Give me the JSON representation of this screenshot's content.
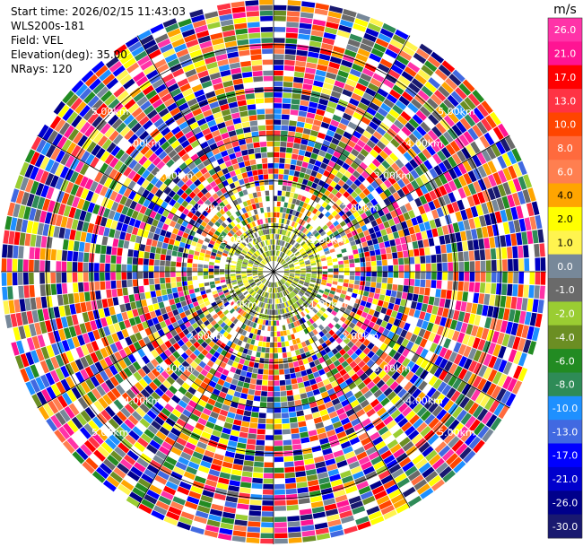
{
  "header": {
    "start_time": "Start time: 2026/02/15 11:43:03",
    "instrument": "WLS200s-181",
    "field": "Field: VEL",
    "elevation": "Elevation(deg): 35.00",
    "nrays": "NRays: 120"
  },
  "chart_data": {
    "type": "heatmap",
    "subtype": "ppi-polar",
    "field": "VEL",
    "units": "m/s",
    "elevation_deg": 35.0,
    "n_rays": 120,
    "max_range_km": 6.0,
    "range_ring_labels": [
      "1.00km",
      "2.00km",
      "3.00km",
      "4.00km",
      "5.00km"
    ],
    "range_ring_km": [
      1,
      2,
      3,
      4,
      5
    ],
    "colorbar": {
      "unit_label": "m/s",
      "ticks": [
        "26.0",
        "21.0",
        "17.0",
        "13.0",
        "10.0",
        "8.0",
        "6.0",
        "4.0",
        "2.0",
        "1.0",
        "0.0",
        "-1.0",
        "-2.0",
        "-4.0",
        "-6.0",
        "-8.0",
        "-10.0",
        "-13.0",
        "-17.0",
        "-21.0",
        "-26.0",
        "-30.0"
      ],
      "colors": [
        "#ff33a8",
        "#ff1493",
        "#ff0000",
        "#ff3344",
        "#ff4500",
        "#ff6a3d",
        "#ff7f50",
        "#ffa500",
        "#ffff00",
        "#fff44f",
        "#778899",
        "#6a6a6a",
        "#9acd32",
        "#6b8e23",
        "#228b22",
        "#2e8b57",
        "#1e90ff",
        "#4169e1",
        "#0000ff",
        "#0000cd",
        "#00008b",
        "#191970"
      ],
      "text_dark_threshold_index": 9
    }
  }
}
